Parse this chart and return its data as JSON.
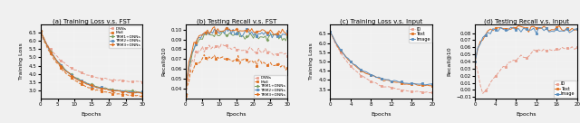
{
  "fig_width": 6.4,
  "fig_height": 1.36,
  "dpi": 100,
  "background": "#f0f0f0",
  "plot_a": {
    "title": "(a) Training Loss v.s. FST",
    "xlabel": "Epochs",
    "ylabel": "Training Loss",
    "xlim": [
      0,
      30
    ],
    "ylim": [
      2.5,
      7.0
    ],
    "ytick_labels": [
      "3.0",
      "3.5",
      "4.0",
      "4.5",
      "5.0",
      "5.5",
      "6.0",
      "6.5"
    ],
    "yticks": [
      3.0,
      3.5,
      4.0,
      4.5,
      5.0,
      5.5,
      6.0,
      6.5
    ],
    "xticks": [
      0,
      5,
      10,
      15,
      20,
      25,
      30
    ],
    "series": {
      "DNNs": {
        "color": "#e8a090",
        "marker": "s",
        "linestyle": "--",
        "start": 6.5,
        "end": 3.45,
        "seed": 1
      },
      "MoE": {
        "color": "#e07020",
        "marker": "s",
        "linestyle": "--",
        "start": 6.52,
        "end": 2.58,
        "seed": 2
      },
      "TRM1+DNNs": {
        "color": "#7a9e60",
        "marker": "P",
        "linestyle": "-",
        "start": 6.6,
        "end": 2.82,
        "seed": 3
      },
      "TRM2+DNNs": {
        "color": "#5a8ebe",
        "marker": "s",
        "linestyle": "-",
        "start": 6.6,
        "end": 2.78,
        "seed": 4
      },
      "TRM3+DNNs": {
        "color": "#e07020",
        "marker": "P",
        "linestyle": "-",
        "start": 6.6,
        "end": 2.75,
        "seed": 5
      }
    }
  },
  "plot_b": {
    "title": "(b) Testing Recall v.s. FST",
    "xlabel": "Epochs",
    "ylabel": "Recall@10",
    "xlim": [
      0,
      30
    ],
    "ylim": [
      0.03,
      0.105
    ],
    "yticks": [
      0.04,
      0.05,
      0.06,
      0.07,
      0.08,
      0.09,
      0.1
    ],
    "xticks": [
      0,
      5,
      10,
      15,
      20,
      25,
      30
    ],
    "series": {
      "DNNs": {
        "color": "#e8a090",
        "marker": "s",
        "linestyle": "--",
        "start": 0.034,
        "peak": 0.083,
        "end": 0.074,
        "seed": 1
      },
      "MoE": {
        "color": "#e07020",
        "marker": "s",
        "linestyle": "--",
        "start": 0.033,
        "peak": 0.072,
        "end": 0.062,
        "seed": 2
      },
      "TRM1+DNNs": {
        "color": "#7a9e60",
        "marker": "P",
        "linestyle": "-",
        "start": 0.034,
        "peak": 0.096,
        "end": 0.092,
        "seed": 3
      },
      "TRM2+DNNs": {
        "color": "#5a8ebe",
        "marker": "s",
        "linestyle": "-",
        "start": 0.034,
        "peak": 0.098,
        "end": 0.094,
        "seed": 4
      },
      "TRM3+DNNs": {
        "color": "#e07020",
        "marker": "P",
        "linestyle": "-",
        "start": 0.034,
        "peak": 0.1,
        "end": 0.096,
        "seed": 5
      }
    }
  },
  "plot_c": {
    "title": "(c) Training Loss v.s. Input",
    "xlabel": "Epochs",
    "ylabel": "Training Loss",
    "xlim": [
      0,
      20
    ],
    "ylim": [
      3.0,
      7.0
    ],
    "yticks": [
      3.5,
      4.0,
      4.5,
      5.0,
      5.5,
      6.0,
      6.5
    ],
    "xticks": [
      0,
      4,
      8,
      12,
      16,
      20
    ],
    "series": {
      "ID": {
        "color": "#e8a090",
        "marker": "s",
        "linestyle": "--",
        "start": 6.6,
        "end": 3.25,
        "seed": 10
      },
      "Text": {
        "color": "#e07020",
        "marker": "s",
        "linestyle": "-",
        "start": 6.6,
        "end": 3.65,
        "seed": 20
      },
      "Image": {
        "color": "#5a8ebe",
        "marker": "s",
        "linestyle": "-",
        "start": 6.6,
        "end": 3.7,
        "seed": 30
      }
    }
  },
  "plot_d": {
    "title": "(d) Testing Recall v.s. Input",
    "xlabel": "Epochs",
    "ylabel": "Recall@10",
    "xlim": [
      0,
      20
    ],
    "ylim": [
      -0.01,
      0.09
    ],
    "yticks": [
      -0.01,
      0.0,
      0.01,
      0.02,
      0.03,
      0.04,
      0.05,
      0.06,
      0.07,
      0.08
    ],
    "xticks": [
      0,
      4,
      8,
      12,
      16,
      20
    ],
    "series": {
      "ID": {
        "color": "#e8a090",
        "marker": "s",
        "linestyle": "--",
        "start": 0.04,
        "dip": -0.008,
        "end": 0.06,
        "seed": 10
      },
      "Text": {
        "color": "#e07020",
        "marker": "s",
        "linestyle": "-",
        "start": 0.04,
        "dip": null,
        "end": 0.086,
        "seed": 20
      },
      "Image": {
        "color": "#5a8ebe",
        "marker": "s",
        "linestyle": "-",
        "start": 0.04,
        "dip": null,
        "end": 0.084,
        "seed": 30
      }
    }
  }
}
